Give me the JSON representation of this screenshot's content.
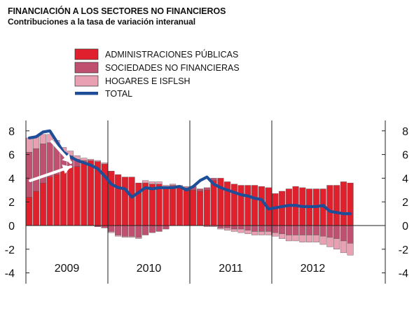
{
  "chart_data": {
    "type": "bar",
    "title": "FINANCIACIÓN A LOS SECTORES NO FINANCIEROS",
    "subtitle": "Contribuciones a la tasa de variación interanual",
    "stacked": true,
    "ylim": [
      -4,
      9
    ],
    "yticks": [
      -4,
      -2,
      0,
      2,
      4,
      6,
      8
    ],
    "year_labels": [
      "2009",
      "2010",
      "2011",
      "2012"
    ],
    "x_months_from": "2009-01",
    "series": [
      {
        "name": "ADMINISTRACIONES PÚBLICAS",
        "color": "#e0202c",
        "values": [
          2.4,
          2.9,
          3.6,
          4.1,
          4.3,
          4.6,
          4.9,
          5.0,
          5.3,
          5.5,
          5.4,
          5.2,
          4.6,
          4.3,
          4.1,
          4.1,
          3.6,
          3.6,
          3.5,
          3.5,
          3.3,
          3.2,
          3.2,
          3.1,
          3.0,
          2.9,
          3.0,
          3.8,
          4.0,
          3.7,
          3.5,
          3.4,
          3.4,
          3.4,
          3.3,
          3.2,
          2.7,
          2.9,
          3.1,
          3.3,
          3.2,
          3.1,
          3.1,
          3.1,
          3.4,
          3.4,
          3.7,
          3.6
        ]
      },
      {
        "name": "SOCIEDADES NO FINANCIERAS",
        "color": "#c05070",
        "values": [
          3.8,
          3.6,
          3.3,
          2.9,
          2.4,
          1.6,
          1.0,
          0.6,
          0.2,
          0.0,
          -0.1,
          -0.2,
          -0.5,
          -0.8,
          -0.9,
          -0.9,
          -1.0,
          -0.8,
          -0.6,
          -0.5,
          -0.3,
          0.2,
          0.1,
          0.1,
          0.3,
          0.2,
          0.2,
          0.2,
          -0.2,
          -0.2,
          -0.3,
          -0.3,
          -0.4,
          -0.5,
          -0.5,
          -0.5,
          -0.6,
          -0.7,
          -0.8,
          -0.8,
          -0.8,
          -0.8,
          -0.8,
          -0.9,
          -1.0,
          -1.1,
          -1.3,
          -1.5
        ]
      },
      {
        "name": "HOGARES E ISFLSH",
        "color": "#e8a0b2",
        "values": [
          1.2,
          1.0,
          0.8,
          0.7,
          0.5,
          0.4,
          0.4,
          0.3,
          0.2,
          0.1,
          0.1,
          0.1,
          -0.1,
          -0.1,
          -0.1,
          -0.1,
          -0.1,
          0.2,
          0.2,
          0.2,
          0.1,
          0.1,
          0.1,
          0.1,
          0.0,
          0.0,
          -0.1,
          -0.1,
          -0.1,
          -0.2,
          -0.2,
          -0.3,
          -0.3,
          -0.3,
          -0.3,
          -0.3,
          -0.3,
          -0.4,
          -0.5,
          -0.5,
          -0.6,
          -0.6,
          -0.6,
          -0.7,
          -0.8,
          -0.9,
          -1.0,
          -1.0
        ]
      },
      {
        "name": "TOTAL",
        "color": "#1f4e99",
        "type": "line",
        "values": [
          7.4,
          7.5,
          7.9,
          8.0,
          7.1,
          6.2,
          5.8,
          5.5,
          5.3,
          5.1,
          4.8,
          4.2,
          3.5,
          3.2,
          3.1,
          2.4,
          2.8,
          3.2,
          3.1,
          3.2,
          3.2,
          3.2,
          3.3,
          3.0,
          3.3,
          3.8,
          4.1,
          3.5,
          3.2,
          3.0,
          2.8,
          2.6,
          2.5,
          2.3,
          2.2,
          1.4,
          1.5,
          1.6,
          1.7,
          1.7,
          1.6,
          1.6,
          1.6,
          1.7,
          1.2,
          1.1,
          1.0,
          1.0
        ]
      }
    ]
  }
}
